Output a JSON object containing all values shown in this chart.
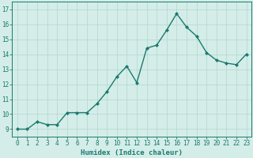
{
  "x": [
    0,
    1,
    2,
    3,
    4,
    5,
    6,
    7,
    8,
    9,
    10,
    11,
    12,
    13,
    14,
    15,
    16,
    17,
    18,
    19,
    20,
    21,
    22,
    23
  ],
  "y": [
    9.0,
    9.0,
    9.5,
    9.3,
    9.3,
    10.1,
    10.1,
    10.1,
    10.7,
    11.5,
    12.5,
    13.2,
    12.1,
    14.4,
    14.6,
    15.6,
    16.7,
    15.8,
    15.2,
    14.1,
    13.6,
    13.4,
    13.3,
    14.0
  ],
  "line_color": "#1a7a6e",
  "marker": "D",
  "markersize": 2.0,
  "linewidth": 1.0,
  "bg_color": "#d4ede8",
  "grid_color": "#b8d9d3",
  "xlabel": "Humidex (Indice chaleur)",
  "ylim": [
    8.5,
    17.5
  ],
  "xlim": [
    -0.5,
    23.5
  ],
  "yticks": [
    9,
    10,
    11,
    12,
    13,
    14,
    15,
    16,
    17
  ],
  "xticks": [
    0,
    1,
    2,
    3,
    4,
    5,
    6,
    7,
    8,
    9,
    10,
    11,
    12,
    13,
    14,
    15,
    16,
    17,
    18,
    19,
    20,
    21,
    22,
    23
  ],
  "xlabel_fontsize": 6.5,
  "tick_fontsize": 5.5
}
